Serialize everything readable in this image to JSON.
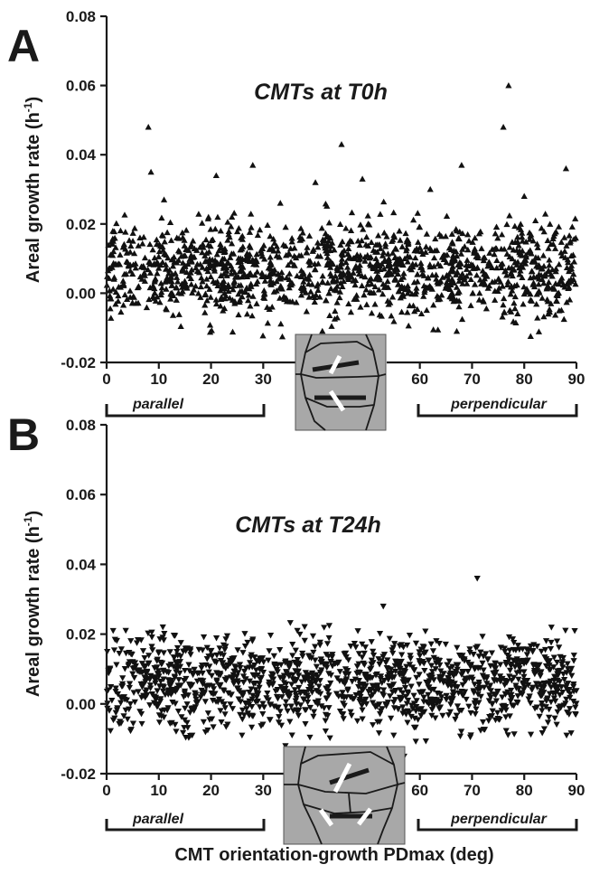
{
  "chart_data": [
    {
      "panel": "A",
      "type": "scatter",
      "marker": "triangle-up",
      "title": "CMTs at T0h",
      "ylabel": "Areal growth rate (h",
      "ylabel_sup": "-1",
      "ylabel_close": ")",
      "xlim": [
        0,
        90
      ],
      "ylim": [
        -0.02,
        0.08
      ],
      "xticks": [
        "0",
        "10",
        "20",
        "30",
        "60",
        "70",
        "80",
        "90"
      ],
      "xtick_values": [
        0,
        10,
        20,
        30,
        60,
        70,
        80,
        90
      ],
      "yticks": [
        "-0.02",
        "0.00",
        "0.02",
        "0.04",
        "0.06",
        "0.08"
      ],
      "ytick_values": [
        -0.02,
        0.0,
        0.02,
        0.04,
        0.06,
        0.08
      ],
      "bracket_labels": [
        "parallel",
        "perpendicular"
      ],
      "distribution": {
        "center": 0.007,
        "spread": 0.007,
        "min": -0.013,
        "max": 0.027,
        "n": 1400
      },
      "outliers": [
        [
          8,
          0.048
        ],
        [
          8.5,
          0.035
        ],
        [
          11,
          0.027
        ],
        [
          21,
          0.034
        ],
        [
          24,
          0.022
        ],
        [
          28,
          0.037
        ],
        [
          40,
          0.032
        ],
        [
          45,
          0.043
        ],
        [
          49,
          0.033
        ],
        [
          62,
          0.03
        ],
        [
          68,
          0.037
        ],
        [
          76,
          0.048
        ],
        [
          77,
          0.06
        ],
        [
          80,
          0.028
        ],
        [
          88,
          0.036
        ]
      ]
    },
    {
      "panel": "B",
      "type": "scatter",
      "marker": "triangle-down",
      "title": "CMTs at T24h",
      "ylabel": "Areal growth rate (h",
      "ylabel_sup": "-1",
      "ylabel_close": ")",
      "xlabel": "CMT orientation-growth PDmax (deg)",
      "xlim": [
        0,
        90
      ],
      "ylim": [
        -0.02,
        0.08
      ],
      "xticks": [
        "0",
        "10",
        "20",
        "30",
        "60",
        "70",
        "80",
        "90"
      ],
      "xtick_values": [
        0,
        10,
        20,
        30,
        60,
        70,
        80,
        90
      ],
      "yticks": [
        "-0.02",
        "0.00",
        "0.02",
        "0.04",
        "0.06",
        "0.08"
      ],
      "ytick_values": [
        -0.02,
        0.0,
        0.02,
        0.04,
        0.06,
        0.08
      ],
      "bracket_labels": [
        "parallel",
        "perpendicular"
      ],
      "distribution": {
        "center": 0.006,
        "spread": 0.0065,
        "min": -0.012,
        "max": 0.025,
        "n": 1400
      },
      "outliers": [
        [
          55,
          -0.009
        ],
        [
          57,
          -0.015
        ],
        [
          71,
          0.036
        ],
        [
          53,
          0.028
        ]
      ]
    }
  ],
  "panels": {
    "a_letter": "A",
    "b_letter": "B"
  },
  "colors": {
    "marker": "#111111",
    "inset_bg": "#a8a8a8",
    "inset_lines": "#1a1a1a",
    "inset_white": "#ffffff"
  }
}
